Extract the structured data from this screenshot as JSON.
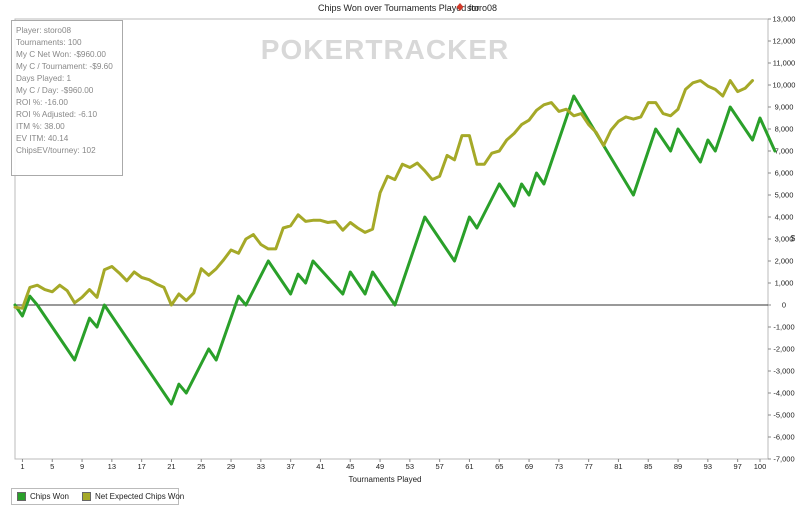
{
  "chart_data": {
    "type": "line",
    "title": "Chips Won over Tournaments Played for",
    "title_player": "storo08",
    "xlabel": "Tournaments Played",
    "ylabel": "$",
    "xlim": [
      0,
      100
    ],
    "ylim": [
      -7000,
      13000
    ],
    "x_ticks": [
      1,
      5,
      9,
      13,
      17,
      21,
      25,
      29,
      33,
      37,
      41,
      45,
      49,
      53,
      57,
      61,
      65,
      69,
      73,
      77,
      81,
      85,
      89,
      93,
      97,
      100
    ],
    "y_ticks": [
      -7000,
      -6000,
      -5000,
      -4000,
      -3000,
      -2000,
      -1000,
      0,
      1000,
      2000,
      3000,
      4000,
      5000,
      6000,
      7000,
      8000,
      9000,
      10000,
      11000,
      12000,
      13000
    ],
    "legend_position": "bottom-left",
    "series": [
      {
        "name": "Chips Won",
        "color": "#2aa02a",
        "points": [
          [
            0,
            0
          ],
          [
            1,
            -500
          ],
          [
            2,
            400
          ],
          [
            3,
            0
          ],
          [
            8,
            -2500
          ],
          [
            10,
            -600
          ],
          [
            11,
            -1000
          ],
          [
            12,
            0
          ],
          [
            21,
            -4500
          ],
          [
            22,
            -3600
          ],
          [
            23,
            -4000
          ],
          [
            26,
            -2000
          ],
          [
            27,
            -2500
          ],
          [
            30,
            400
          ],
          [
            31,
            0
          ],
          [
            34,
            2000
          ],
          [
            37,
            500
          ],
          [
            38,
            1400
          ],
          [
            39,
            1000
          ],
          [
            40,
            2000
          ],
          [
            44,
            500
          ],
          [
            45,
            1500
          ],
          [
            47,
            500
          ],
          [
            48,
            1500
          ],
          [
            51,
            0
          ],
          [
            55,
            4000
          ],
          [
            59,
            2000
          ],
          [
            61,
            4000
          ],
          [
            62,
            3500
          ],
          [
            65,
            5500
          ],
          [
            67,
            4500
          ],
          [
            68,
            5500
          ],
          [
            69,
            5000
          ],
          [
            70,
            6000
          ],
          [
            71,
            5500
          ],
          [
            75,
            9500
          ],
          [
            83,
            5000
          ],
          [
            86,
            8000
          ],
          [
            88,
            7000
          ],
          [
            89,
            8000
          ],
          [
            92,
            6500
          ],
          [
            93,
            7500
          ],
          [
            94,
            7000
          ],
          [
            96,
            9000
          ],
          [
            99,
            7500
          ],
          [
            100,
            8500
          ],
          [
            102,
            7000
          ]
        ]
      },
      {
        "name": "Net Expected Chips Won",
        "color": "#a5a928",
        "points": [
          [
            0,
            -100
          ],
          [
            1,
            -150
          ],
          [
            2,
            800
          ],
          [
            3,
            900
          ],
          [
            4,
            700
          ],
          [
            5,
            600
          ],
          [
            6,
            900
          ],
          [
            7,
            650
          ],
          [
            8,
            100
          ],
          [
            9,
            350
          ],
          [
            10,
            700
          ],
          [
            11,
            350
          ],
          [
            12,
            1600
          ],
          [
            13,
            1750
          ],
          [
            14,
            1450
          ],
          [
            15,
            1100
          ],
          [
            16,
            1500
          ],
          [
            17,
            1250
          ],
          [
            18,
            1150
          ],
          [
            19,
            950
          ],
          [
            20,
            800
          ],
          [
            21,
            0
          ],
          [
            22,
            500
          ],
          [
            23,
            200
          ],
          [
            24,
            550
          ],
          [
            25,
            1650
          ],
          [
            26,
            1350
          ],
          [
            27,
            1650
          ],
          [
            28,
            2050
          ],
          [
            29,
            2500
          ],
          [
            30,
            2350
          ],
          [
            31,
            3000
          ],
          [
            32,
            3200
          ],
          [
            33,
            2750
          ],
          [
            34,
            2550
          ],
          [
            35,
            2550
          ],
          [
            36,
            3500
          ],
          [
            37,
            3600
          ],
          [
            38,
            4100
          ],
          [
            39,
            3800
          ],
          [
            40,
            3850
          ],
          [
            41,
            3850
          ],
          [
            42,
            3750
          ],
          [
            43,
            3800
          ],
          [
            44,
            3400
          ],
          [
            45,
            3750
          ],
          [
            46,
            3500
          ],
          [
            47,
            3300
          ],
          [
            48,
            3450
          ],
          [
            49,
            5100
          ],
          [
            50,
            5850
          ],
          [
            51,
            5700
          ],
          [
            52,
            6400
          ],
          [
            53,
            6250
          ],
          [
            54,
            6450
          ],
          [
            55,
            6100
          ],
          [
            56,
            5700
          ],
          [
            57,
            5850
          ],
          [
            58,
            6800
          ],
          [
            59,
            6600
          ],
          [
            60,
            7700
          ],
          [
            61,
            7700
          ],
          [
            62,
            6400
          ],
          [
            63,
            6400
          ],
          [
            64,
            6900
          ],
          [
            65,
            7000
          ],
          [
            66,
            7500
          ],
          [
            67,
            7800
          ],
          [
            68,
            8200
          ],
          [
            69,
            8400
          ],
          [
            70,
            8850
          ],
          [
            71,
            9100
          ],
          [
            72,
            9200
          ],
          [
            73,
            8800
          ],
          [
            74,
            8900
          ],
          [
            75,
            8600
          ],
          [
            76,
            8700
          ],
          [
            77,
            8200
          ],
          [
            78,
            7850
          ],
          [
            79,
            7250
          ],
          [
            80,
            7950
          ],
          [
            81,
            8350
          ],
          [
            82,
            8550
          ],
          [
            83,
            8450
          ],
          [
            84,
            8550
          ],
          [
            85,
            9200
          ],
          [
            86,
            9200
          ],
          [
            87,
            8700
          ],
          [
            88,
            8600
          ],
          [
            89,
            8900
          ],
          [
            90,
            9800
          ],
          [
            91,
            10100
          ],
          [
            92,
            10200
          ],
          [
            93,
            9950
          ],
          [
            94,
            9800
          ],
          [
            95,
            9500
          ],
          [
            96,
            10200
          ],
          [
            97,
            9700
          ],
          [
            98,
            9850
          ],
          [
            99,
            10200
          ]
        ]
      }
    ]
  },
  "watermark": "POKERTRACKER",
  "stats": [
    "Player: storo08",
    "Tournaments: 100",
    "My C Net Won: -$960.00",
    "My C / Tournament: -$9.60",
    "Days Played: 1",
    "My C / Day: -$960.00",
    "ROI %: -16.00",
    "ROI % Adjusted: -6.10",
    "ITM %: 38.00",
    "EV ITM: 40.14",
    "ChipsEV/tourney: 102"
  ],
  "legend": [
    "Chips Won",
    "Net Expected Chips Won"
  ],
  "colors": {
    "chips_won": "#2aa02a",
    "net_expected": "#a5a928",
    "player_icon": "#d23a2a"
  }
}
